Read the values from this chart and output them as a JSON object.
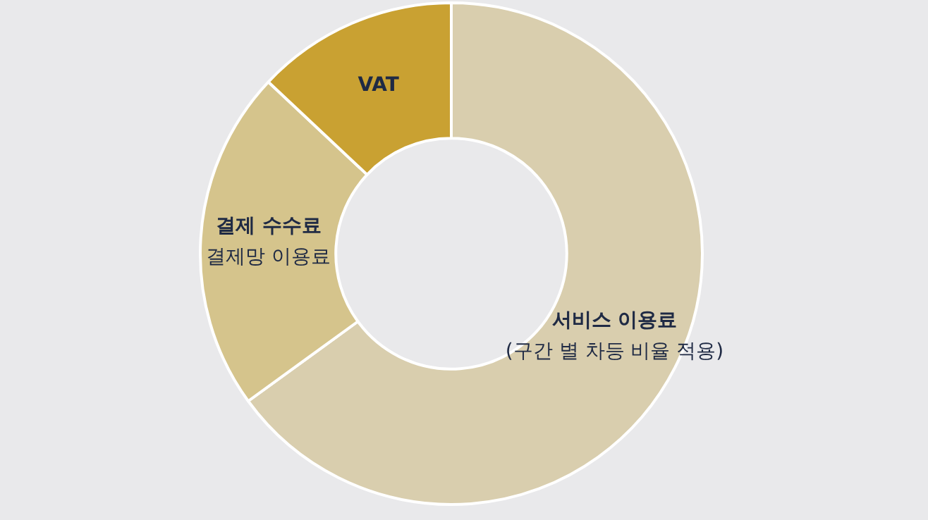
{
  "chart_data": {
    "type": "donut",
    "categories": [
      "서비스 이용료\n(구간 별 차등 비율 적용)",
      "결제 수수료\n결제망 이용료",
      "VAT"
    ],
    "values": [
      65,
      22,
      13
    ],
    "colors": [
      "#d9ceae",
      "#d5c48c",
      "#c9a132"
    ],
    "legend": false
  }
}
